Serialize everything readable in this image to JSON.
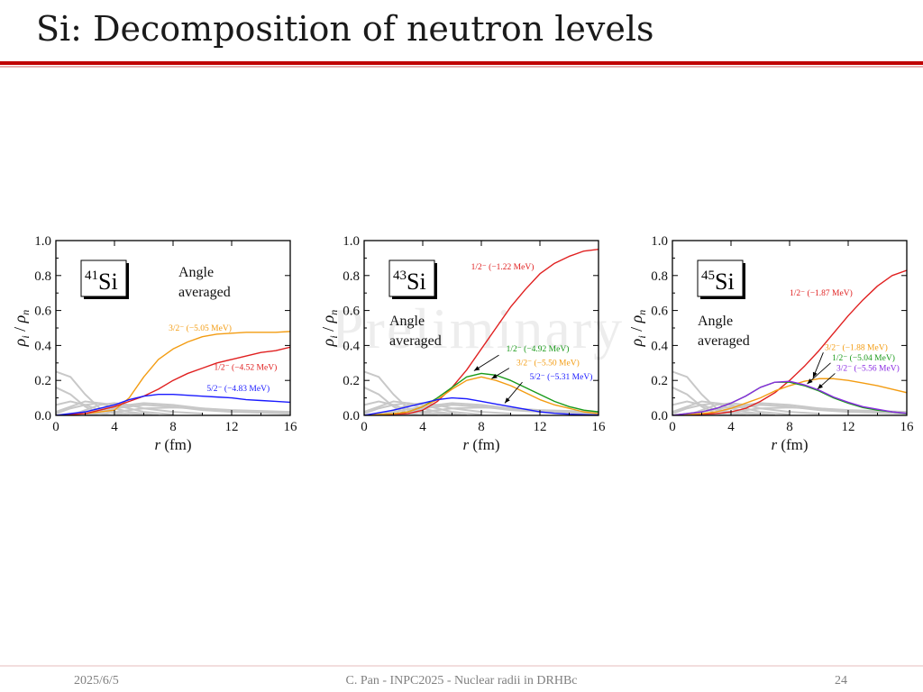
{
  "slide": {
    "title": "Si: Decomposition of neutron levels",
    "watermark": "Preliminary",
    "footer_date": "2025/6/5",
    "footer_center": "C. Pan - INPC2025 - Nuclear radii in DRHBc",
    "page_number": "24"
  },
  "colors": {
    "title_rule": "#c00000",
    "gray_curves": "#c8c8c8"
  },
  "chart_data": [
    {
      "type": "line",
      "nucleus_mass": "41",
      "nucleus_symbol": "Si",
      "note": "Angle\naveraged",
      "xlabel_var": "r",
      "xlabel_unit": " (fm)",
      "ylabel_main": "ρ",
      "ylabel_sub1": "i",
      "ylabel_sep": " / ",
      "ylabel_sub2": "n",
      "xlim": [
        0,
        16
      ],
      "ylim": [
        0,
        1.0
      ],
      "xticks": [
        0,
        4,
        8,
        12,
        16
      ],
      "yticks": [
        0.0,
        0.2,
        0.4,
        0.6,
        0.8,
        1.0
      ],
      "series": [
        {
          "name": "3/2⁻ (−5.05 MeV)",
          "color": "#f39c12",
          "x": [
            0,
            2,
            4,
            5,
            6,
            7,
            8,
            9,
            10,
            11,
            12,
            13,
            14,
            15,
            16
          ],
          "y": [
            0,
            0.01,
            0.03,
            0.1,
            0.22,
            0.32,
            0.38,
            0.42,
            0.45,
            0.465,
            0.47,
            0.475,
            0.475,
            0.475,
            0.48
          ]
        },
        {
          "name": "1/2⁻ (−4.52 MeV)",
          "color": "#e02020",
          "x": [
            0,
            2,
            3,
            4,
            5,
            6,
            7,
            8,
            9,
            10,
            11,
            12,
            13,
            14,
            15,
            16
          ],
          "y": [
            0,
            0.01,
            0.03,
            0.05,
            0.08,
            0.11,
            0.15,
            0.2,
            0.24,
            0.27,
            0.3,
            0.32,
            0.34,
            0.36,
            0.37,
            0.39
          ]
        },
        {
          "name": "5/2⁻ (−4.83 MeV)",
          "color": "#1a1aff",
          "x": [
            0,
            2,
            3,
            4,
            5,
            6,
            7,
            8,
            9,
            10,
            11,
            12,
            13,
            14,
            15,
            16
          ],
          "y": [
            0,
            0.02,
            0.04,
            0.06,
            0.09,
            0.11,
            0.12,
            0.12,
            0.115,
            0.11,
            0.105,
            0.1,
            0.09,
            0.085,
            0.08,
            0.075
          ]
        }
      ],
      "labels": [
        {
          "text": "3/2⁻ (−5.05 MeV)",
          "x": 7.7,
          "y": 0.485,
          "series": 0
        },
        {
          "text": "1/2⁻ (−4.52 MeV)",
          "x": 10.8,
          "y": 0.26,
          "series": 1
        },
        {
          "text": "5/2⁻ (−4.83 MeV)",
          "x": 10.3,
          "y": 0.14,
          "series": 2
        }
      ],
      "arrows": []
    },
    {
      "type": "line",
      "nucleus_mass": "43",
      "nucleus_symbol": "Si",
      "note": "Angle\naveraged",
      "xlabel_var": "r",
      "xlabel_unit": " (fm)",
      "ylabel_main": "ρ",
      "ylabel_sub1": "i",
      "ylabel_sep": " / ",
      "ylabel_sub2": "n",
      "xlim": [
        0,
        16
      ],
      "ylim": [
        0,
        1.0
      ],
      "xticks": [
        0,
        4,
        8,
        12,
        16
      ],
      "yticks": [
        0.0,
        0.2,
        0.4,
        0.6,
        0.8,
        1.0
      ],
      "series": [
        {
          "name": "1/2⁻ (−1.22 MeV)",
          "color": "#e02020",
          "x": [
            0,
            3,
            4,
            5,
            6,
            7,
            8,
            9,
            10,
            11,
            12,
            13,
            14,
            15,
            16
          ],
          "y": [
            0,
            0.01,
            0.03,
            0.08,
            0.16,
            0.26,
            0.38,
            0.5,
            0.62,
            0.72,
            0.81,
            0.87,
            0.91,
            0.94,
            0.95
          ]
        },
        {
          "name": "1/2⁻ (−4.92 MeV)",
          "color": "#1a9a1a",
          "x": [
            0,
            2,
            3,
            4,
            5,
            6,
            7,
            8,
            9,
            10,
            11,
            12,
            13,
            14,
            15,
            16
          ],
          "y": [
            0,
            0.01,
            0.02,
            0.05,
            0.1,
            0.16,
            0.22,
            0.24,
            0.23,
            0.2,
            0.16,
            0.12,
            0.08,
            0.05,
            0.03,
            0.02
          ]
        },
        {
          "name": "3/2⁻ (−5.50 MeV)",
          "color": "#f39c12",
          "x": [
            0,
            2,
            3,
            4,
            5,
            6,
            7,
            8,
            9,
            10,
            11,
            12,
            13,
            14,
            15,
            16
          ],
          "y": [
            0,
            0.01,
            0.02,
            0.05,
            0.09,
            0.15,
            0.2,
            0.22,
            0.2,
            0.17,
            0.13,
            0.09,
            0.06,
            0.04,
            0.02,
            0.01
          ]
        },
        {
          "name": "5/2⁻ (−5.31 MeV)",
          "color": "#1a1aff",
          "x": [
            0,
            2,
            3,
            4,
            5,
            6,
            7,
            8,
            9,
            10,
            11,
            12,
            13,
            14,
            15,
            16
          ],
          "y": [
            0,
            0.03,
            0.05,
            0.07,
            0.09,
            0.1,
            0.095,
            0.08,
            0.065,
            0.05,
            0.035,
            0.02,
            0.012,
            0.007,
            0.004,
            0.002
          ]
        }
      ],
      "labels": [
        {
          "text": "1/2⁻ (−1.22 MeV)",
          "x": 7.3,
          "y": 0.835,
          "series": 0
        },
        {
          "text": "1/2⁻ (−4.92 MeV)",
          "x": 9.7,
          "y": 0.365,
          "series": 1
        },
        {
          "text": "3/2⁻ (−5.50 MeV)",
          "x": 10.4,
          "y": 0.285,
          "series": 2
        },
        {
          "text": "5/2⁻ (−5.31 MeV)",
          "x": 11.3,
          "y": 0.205,
          "series": 3
        }
      ],
      "arrows": [
        {
          "series": 1,
          "from": [
            9.2,
            0.345
          ],
          "to": [
            7.5,
            0.255
          ]
        },
        {
          "series": 2,
          "from": [
            9.9,
            0.27
          ],
          "to": [
            8.7,
            0.21
          ]
        },
        {
          "series": 3,
          "from": [
            10.8,
            0.19
          ],
          "to": [
            9.6,
            0.07
          ]
        }
      ]
    },
    {
      "type": "line",
      "nucleus_mass": "45",
      "nucleus_symbol": "Si",
      "note": "Angle\naveraged",
      "xlabel_var": "r",
      "xlabel_unit": " (fm)",
      "ylabel_main": "ρ",
      "ylabel_sub1": "i",
      "ylabel_sep": " / ",
      "ylabel_sub2": "n",
      "xlim": [
        0,
        16
      ],
      "ylim": [
        0,
        1.0
      ],
      "xticks": [
        0,
        4,
        8,
        12,
        16
      ],
      "yticks": [
        0.0,
        0.2,
        0.4,
        0.6,
        0.8,
        1.0
      ],
      "series": [
        {
          "name": "1/2⁻ (−1.87 MeV)",
          "color": "#e02020",
          "x": [
            0,
            3,
            4,
            5,
            6,
            7,
            8,
            9,
            10,
            11,
            12,
            13,
            14,
            15,
            16
          ],
          "y": [
            0,
            0.01,
            0.02,
            0.04,
            0.08,
            0.13,
            0.2,
            0.28,
            0.37,
            0.47,
            0.57,
            0.66,
            0.74,
            0.8,
            0.83
          ]
        },
        {
          "name": "3/2⁻ (−1.88 MeV)",
          "color": "#f39c12",
          "x": [
            0,
            2,
            3,
            4,
            5,
            6,
            7,
            8,
            9,
            10,
            11,
            12,
            13,
            14,
            15,
            16
          ],
          "y": [
            0,
            0.01,
            0.02,
            0.04,
            0.07,
            0.1,
            0.14,
            0.17,
            0.195,
            0.21,
            0.21,
            0.2,
            0.185,
            0.17,
            0.15,
            0.13
          ]
        },
        {
          "name": "1/2⁻ (−5.04 MeV)",
          "color": "#1a9a1a",
          "x": [
            0,
            2,
            3,
            4,
            5,
            6,
            7,
            8,
            9,
            10,
            11,
            12,
            13,
            14,
            15,
            16
          ],
          "y": [
            0,
            0.02,
            0.04,
            0.07,
            0.11,
            0.16,
            0.19,
            0.19,
            0.17,
            0.14,
            0.1,
            0.07,
            0.045,
            0.03,
            0.02,
            0.01
          ]
        },
        {
          "name": "3/2⁻ (−5.56 MeV)",
          "color": "#8a2be2",
          "x": [
            0,
            2,
            3,
            4,
            5,
            6,
            7,
            8,
            9,
            10,
            11,
            12,
            13,
            14,
            15,
            16
          ],
          "y": [
            0,
            0.02,
            0.04,
            0.07,
            0.11,
            0.16,
            0.19,
            0.195,
            0.175,
            0.145,
            0.105,
            0.075,
            0.05,
            0.035,
            0.02,
            0.012
          ]
        }
      ],
      "labels": [
        {
          "text": "1/2⁻ (−1.87 MeV)",
          "x": 8.0,
          "y": 0.685,
          "series": 0
        },
        {
          "text": "3/2⁻ (−1.88 MeV)",
          "x": 10.4,
          "y": 0.375,
          "series": 1
        },
        {
          "text": "1/2⁻ (−5.04 MeV)",
          "x": 10.9,
          "y": 0.315,
          "series": 2
        },
        {
          "text": "3/2⁻ (−5.56 MeV)",
          "x": 11.2,
          "y": 0.255,
          "series": 3
        }
      ],
      "arrows": [
        {
          "series": 1,
          "from": [
            10.3,
            0.36
          ],
          "to": [
            9.6,
            0.215
          ]
        },
        {
          "series": 2,
          "from": [
            10.8,
            0.3
          ],
          "to": [
            9.2,
            0.18
          ]
        },
        {
          "series": 3,
          "from": [
            11.1,
            0.24
          ],
          "to": [
            9.9,
            0.15
          ]
        }
      ]
    }
  ]
}
